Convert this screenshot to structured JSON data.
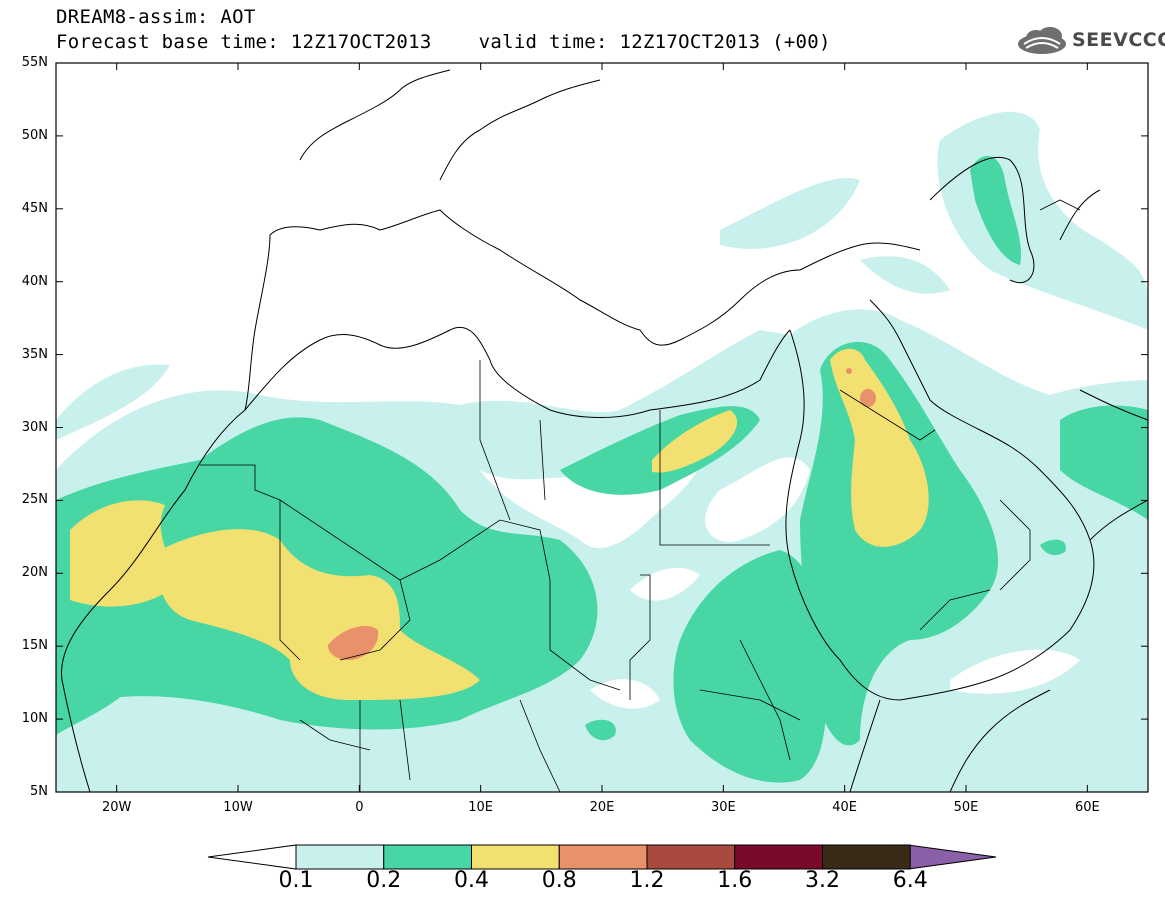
{
  "header": {
    "title_line1": "DREAM8-assim: AOT",
    "title_line2": "Forecast base time: 12Z17OCT2013    valid time: 12Z17OCT2013 (+00)",
    "logo_text": "SEEVCCC"
  },
  "map": {
    "lon_range": [
      -25,
      65
    ],
    "lat_range": [
      5,
      55
    ],
    "lat_labels": [
      "55N",
      "50N",
      "45N",
      "40N",
      "35N",
      "30N",
      "25N",
      "20N",
      "15N",
      "10N",
      "5N"
    ],
    "lon_labels": [
      "20W",
      "10W",
      "0",
      "10E",
      "20E",
      "30E",
      "40E",
      "50E",
      "60E"
    ],
    "variable": "AOT"
  },
  "colorbar": {
    "labels": [
      "0.1",
      "0.2",
      "0.4",
      "0.8",
      "1.2",
      "1.6",
      "3.2",
      "6.4"
    ],
    "colors": [
      "#c8f0ec",
      "#48d6a4",
      "#f2e070",
      "#e8916a",
      "#a84a40",
      "#7a0a2a",
      "#3a2a18",
      "#8a60a8"
    ]
  },
  "colors": {
    "level_0_1": "#c8f0ec",
    "level_0_2": "#48d6a4",
    "level_0_4": "#f2e070",
    "level_0_8": "#e8916a",
    "coastline": "#000000"
  }
}
